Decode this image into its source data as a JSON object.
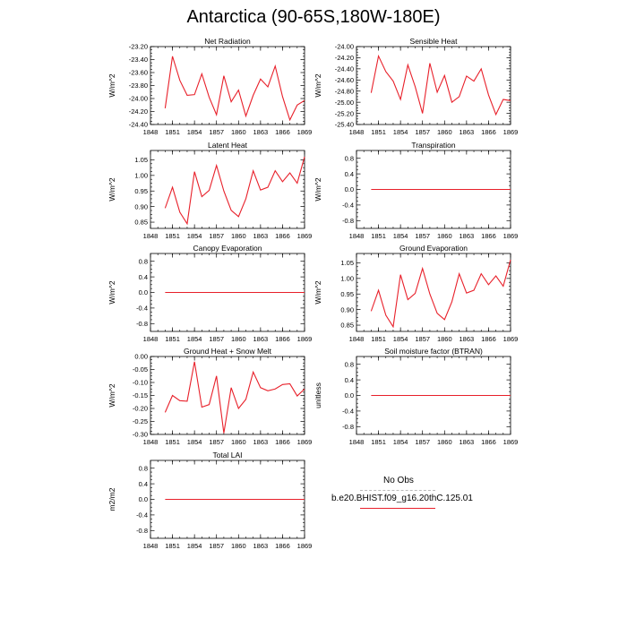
{
  "title": "Antarctica (90-65S,180W-180E)",
  "legend": {
    "items": [
      {
        "label": "No Obs",
        "color": "#bbbbbb",
        "dashed": true
      },
      {
        "label": "b.e20.BHIST.f09_g16.20thC.125.01",
        "color": "#e8202a",
        "dashed": false
      }
    ]
  },
  "chart_data": [
    {
      "type": "line",
      "title": "Net Radiation",
      "ylabel": "W/m^2",
      "x": [
        1850,
        1851,
        1852,
        1853,
        1854,
        1855,
        1856,
        1857,
        1858,
        1859,
        1860,
        1861,
        1862,
        1863,
        1864,
        1865,
        1866,
        1867,
        1868,
        1869
      ],
      "xticks": [
        1848,
        1851,
        1854,
        1857,
        1860,
        1863,
        1866,
        1869
      ],
      "xlim": [
        1848,
        1869
      ],
      "ylim": [
        -24.4,
        -23.2
      ],
      "yticks": [
        -24.4,
        -24.2,
        -24.0,
        -23.8,
        -23.6,
        -23.4,
        -23.2
      ],
      "ytick_labels": [
        "-24.40",
        "-24.20",
        "-24.00",
        "-23.80",
        "-23.60",
        "-23.40",
        "-23.20"
      ],
      "series": [
        {
          "color": "#e8202a",
          "values": [
            -24.15,
            -23.35,
            -23.72,
            -23.95,
            -23.94,
            -23.62,
            -23.98,
            -24.25,
            -23.65,
            -24.05,
            -23.87,
            -24.27,
            -23.95,
            -23.7,
            -23.82,
            -23.5,
            -23.97,
            -24.33,
            -24.1,
            -24.03
          ]
        }
      ]
    },
    {
      "type": "line",
      "title": "Sensible Heat",
      "ylabel": "W/m^2",
      "x": [
        1850,
        1851,
        1852,
        1853,
        1854,
        1855,
        1856,
        1857,
        1858,
        1859,
        1860,
        1861,
        1862,
        1863,
        1864,
        1865,
        1866,
        1867,
        1868,
        1869
      ],
      "xticks": [
        1848,
        1851,
        1854,
        1857,
        1860,
        1863,
        1866,
        1869
      ],
      "xlim": [
        1848,
        1869
      ],
      "ylim": [
        -25.4,
        -24.0
      ],
      "yticks": [
        -25.4,
        -25.2,
        -25.0,
        -24.8,
        -24.6,
        -24.4,
        -24.2,
        -24.0
      ],
      "ytick_labels": [
        "-25.40",
        "-25.20",
        "-25.00",
        "-24.80",
        "-24.60",
        "-24.40",
        "-24.20",
        "-24.00"
      ],
      "series": [
        {
          "color": "#e8202a",
          "values": [
            -24.83,
            -24.17,
            -24.45,
            -24.62,
            -24.95,
            -24.33,
            -24.72,
            -25.2,
            -24.3,
            -24.82,
            -24.52,
            -25.0,
            -24.9,
            -24.53,
            -24.62,
            -24.4,
            -24.87,
            -25.22,
            -24.95,
            -24.97
          ]
        }
      ]
    },
    {
      "type": "line",
      "title": "Latent Heat",
      "ylabel": "W/m^2",
      "x": [
        1850,
        1851,
        1852,
        1853,
        1854,
        1855,
        1856,
        1857,
        1858,
        1859,
        1860,
        1861,
        1862,
        1863,
        1864,
        1865,
        1866,
        1867,
        1868,
        1869
      ],
      "xticks": [
        1848,
        1851,
        1854,
        1857,
        1860,
        1863,
        1866,
        1869
      ],
      "xlim": [
        1848,
        1869
      ],
      "ylim": [
        0.83,
        1.08
      ],
      "yticks": [
        0.85,
        0.9,
        0.95,
        1.0,
        1.05
      ],
      "ytick_labels": [
        "0.85",
        "0.90",
        "0.95",
        "1.00",
        "1.05"
      ],
      "series": [
        {
          "color": "#e8202a",
          "values": [
            0.895,
            0.962,
            0.882,
            0.845,
            1.012,
            0.932,
            0.952,
            1.032,
            0.95,
            0.888,
            0.868,
            0.925,
            1.015,
            0.953,
            0.962,
            1.015,
            0.98,
            1.008,
            0.975,
            1.06
          ]
        }
      ]
    },
    {
      "type": "line",
      "title": "Transpiration",
      "ylabel": "W/m^2",
      "x": [
        1850,
        1851,
        1852,
        1853,
        1854,
        1855,
        1856,
        1857,
        1858,
        1859,
        1860,
        1861,
        1862,
        1863,
        1864,
        1865,
        1866,
        1867,
        1868,
        1869
      ],
      "xticks": [
        1848,
        1851,
        1854,
        1857,
        1860,
        1863,
        1866,
        1869
      ],
      "xlim": [
        1848,
        1869
      ],
      "ylim": [
        -1.0,
        1.0
      ],
      "yticks": [
        -0.8,
        -0.4,
        0.0,
        0.4,
        0.8
      ],
      "ytick_labels": [
        "-0.8",
        "-0.4",
        "0.0",
        "0.4",
        "0.8"
      ],
      "series": [
        {
          "color": "#e8202a",
          "values": [
            0,
            0,
            0,
            0,
            0,
            0,
            0,
            0,
            0,
            0,
            0,
            0,
            0,
            0,
            0,
            0,
            0,
            0,
            0,
            0
          ]
        }
      ]
    },
    {
      "type": "line",
      "title": "Canopy Evaporation",
      "ylabel": "W/m^2",
      "x": [
        1850,
        1851,
        1852,
        1853,
        1854,
        1855,
        1856,
        1857,
        1858,
        1859,
        1860,
        1861,
        1862,
        1863,
        1864,
        1865,
        1866,
        1867,
        1868,
        1869
      ],
      "xticks": [
        1848,
        1851,
        1854,
        1857,
        1860,
        1863,
        1866,
        1869
      ],
      "xlim": [
        1848,
        1869
      ],
      "ylim": [
        -1.0,
        1.0
      ],
      "yticks": [
        -0.8,
        -0.4,
        0.0,
        0.4,
        0.8
      ],
      "ytick_labels": [
        "-0.8",
        "-0.4",
        "0.0",
        "0.4",
        "0.8"
      ],
      "series": [
        {
          "color": "#e8202a",
          "values": [
            0,
            0,
            0,
            0,
            0,
            0,
            0,
            0,
            0,
            0,
            0,
            0,
            0,
            0,
            0,
            0,
            0,
            0,
            0,
            0
          ]
        }
      ]
    },
    {
      "type": "line",
      "title": "Ground Evaporation",
      "ylabel": "W/m^2",
      "x": [
        1850,
        1851,
        1852,
        1853,
        1854,
        1855,
        1856,
        1857,
        1858,
        1859,
        1860,
        1861,
        1862,
        1863,
        1864,
        1865,
        1866,
        1867,
        1868,
        1869
      ],
      "xticks": [
        1848,
        1851,
        1854,
        1857,
        1860,
        1863,
        1866,
        1869
      ],
      "xlim": [
        1848,
        1869
      ],
      "ylim": [
        0.83,
        1.08
      ],
      "yticks": [
        0.85,
        0.9,
        0.95,
        1.0,
        1.05
      ],
      "ytick_labels": [
        "0.85",
        "0.90",
        "0.95",
        "1.00",
        "1.05"
      ],
      "series": [
        {
          "color": "#e8202a",
          "values": [
            0.895,
            0.962,
            0.882,
            0.845,
            1.012,
            0.932,
            0.952,
            1.032,
            0.95,
            0.888,
            0.868,
            0.925,
            1.015,
            0.953,
            0.962,
            1.015,
            0.98,
            1.008,
            0.975,
            1.06
          ]
        }
      ]
    },
    {
      "type": "line",
      "title": "Ground Heat + Snow Melt",
      "ylabel": "W/m^2",
      "x": [
        1850,
        1851,
        1852,
        1853,
        1854,
        1855,
        1856,
        1857,
        1858,
        1859,
        1860,
        1861,
        1862,
        1863,
        1864,
        1865,
        1866,
        1867,
        1868,
        1869
      ],
      "xticks": [
        1848,
        1851,
        1854,
        1857,
        1860,
        1863,
        1866,
        1869
      ],
      "xlim": [
        1848,
        1869
      ],
      "ylim": [
        -0.3,
        0.0
      ],
      "yticks": [
        -0.3,
        -0.25,
        -0.2,
        -0.15,
        -0.1,
        -0.05,
        0.0
      ],
      "ytick_labels": [
        "-0.30",
        "-0.25",
        "-0.20",
        "-0.15",
        "-0.10",
        "-0.05",
        "0.00"
      ],
      "series": [
        {
          "color": "#e8202a",
          "values": [
            -0.215,
            -0.15,
            -0.17,
            -0.172,
            -0.02,
            -0.195,
            -0.185,
            -0.075,
            -0.295,
            -0.12,
            -0.2,
            -0.165,
            -0.06,
            -0.12,
            -0.132,
            -0.125,
            -0.108,
            -0.105,
            -0.152,
            -0.125
          ]
        }
      ]
    },
    {
      "type": "line",
      "title": "Soil moisture factor (BTRAN)",
      "ylabel": "unitless",
      "x": [
        1850,
        1851,
        1852,
        1853,
        1854,
        1855,
        1856,
        1857,
        1858,
        1859,
        1860,
        1861,
        1862,
        1863,
        1864,
        1865,
        1866,
        1867,
        1868,
        1869
      ],
      "xticks": [
        1848,
        1851,
        1854,
        1857,
        1860,
        1863,
        1866,
        1869
      ],
      "xlim": [
        1848,
        1869
      ],
      "ylim": [
        -1.0,
        1.0
      ],
      "yticks": [
        -0.8,
        -0.4,
        0.0,
        0.4,
        0.8
      ],
      "ytick_labels": [
        "-0.8",
        "-0.4",
        "0.0",
        "0.4",
        "0.8"
      ],
      "series": [
        {
          "color": "#e8202a",
          "values": [
            0,
            0,
            0,
            0,
            0,
            0,
            0,
            0,
            0,
            0,
            0,
            0,
            0,
            0,
            0,
            0,
            0,
            0,
            0,
            0
          ]
        }
      ]
    },
    {
      "type": "line",
      "title": "Total LAI",
      "ylabel": "m2/m2",
      "x": [
        1850,
        1851,
        1852,
        1853,
        1854,
        1855,
        1856,
        1857,
        1858,
        1859,
        1860,
        1861,
        1862,
        1863,
        1864,
        1865,
        1866,
        1867,
        1868,
        1869
      ],
      "xticks": [
        1848,
        1851,
        1854,
        1857,
        1860,
        1863,
        1866,
        1869
      ],
      "xlim": [
        1848,
        1869
      ],
      "ylim": [
        -1.0,
        1.0
      ],
      "yticks": [
        -0.8,
        -0.4,
        0.0,
        0.4,
        0.8
      ],
      "ytick_labels": [
        "-0.8",
        "-0.4",
        "0.0",
        "0.4",
        "0.8"
      ],
      "series": [
        {
          "color": "#e8202a",
          "values": [
            0,
            0,
            0,
            0,
            0,
            0,
            0,
            0,
            0,
            0,
            0,
            0,
            0,
            0,
            0,
            0,
            0,
            0,
            0,
            0
          ]
        }
      ]
    }
  ]
}
